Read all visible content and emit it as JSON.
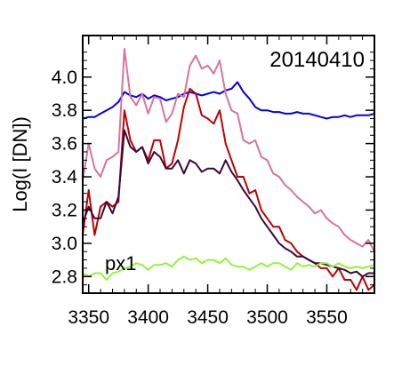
{
  "chart_data": {
    "type": "line",
    "annotations": [
      "20140410",
      "px1"
    ],
    "xlabel": "",
    "ylabel": "Log(I [DN])",
    "xlim": [
      3345,
      3590
    ],
    "ylim": [
      2.7,
      4.25
    ],
    "xticks": [
      3350,
      3400,
      3450,
      3500,
      3550
    ],
    "yticks": [
      2.8,
      3.0,
      3.2,
      3.4,
      3.6,
      3.8,
      4.0
    ],
    "xtick_labels": [
      "3350",
      "3400",
      "3450",
      "3500",
      "3550"
    ],
    "ytick_labels": [
      "2.8",
      "3.0",
      "3.2",
      "3.4",
      "3.6",
      "3.8",
      "4.0"
    ],
    "grid": false,
    "legend": "none",
    "series": [
      {
        "color": "#0000ee",
        "x": [
          3345,
          3350,
          3355,
          3360,
          3365,
          3370,
          3375,
          3380,
          3385,
          3390,
          3395,
          3400,
          3405,
          3410,
          3415,
          3420,
          3425,
          3430,
          3435,
          3440,
          3445,
          3450,
          3455,
          3460,
          3465,
          3470,
          3475,
          3480,
          3485,
          3490,
          3495,
          3500,
          3505,
          3510,
          3515,
          3520,
          3525,
          3530,
          3535,
          3540,
          3545,
          3550,
          3555,
          3560,
          3565,
          3570,
          3575,
          3580,
          3585,
          3590
        ],
        "y": [
          3.75,
          3.76,
          3.76,
          3.78,
          3.8,
          3.82,
          3.85,
          3.91,
          3.89,
          3.88,
          3.9,
          3.87,
          3.89,
          3.88,
          3.86,
          3.87,
          3.88,
          3.9,
          3.91,
          3.9,
          3.89,
          3.9,
          3.91,
          3.9,
          3.92,
          3.93,
          3.97,
          3.91,
          3.87,
          3.82,
          3.8,
          3.8,
          3.79,
          3.79,
          3.78,
          3.78,
          3.79,
          3.78,
          3.78,
          3.77,
          3.76,
          3.75,
          3.76,
          3.76,
          3.77,
          3.76,
          3.77,
          3.77,
          3.77,
          3.78
        ]
      },
      {
        "color": "#d9739c",
        "x": [
          3345,
          3350,
          3355,
          3360,
          3365,
          3370,
          3375,
          3380,
          3385,
          3390,
          3395,
          3400,
          3405,
          3410,
          3415,
          3420,
          3425,
          3430,
          3435,
          3440,
          3445,
          3450,
          3455,
          3460,
          3465,
          3470,
          3475,
          3480,
          3485,
          3490,
          3495,
          3500,
          3505,
          3510,
          3515,
          3520,
          3525,
          3530,
          3535,
          3540,
          3545,
          3550,
          3555,
          3560,
          3565,
          3570,
          3575,
          3580,
          3585,
          3590
        ],
        "y": [
          3.38,
          3.6,
          3.45,
          3.4,
          3.5,
          3.52,
          3.55,
          4.17,
          3.88,
          3.83,
          3.9,
          3.78,
          3.88,
          3.87,
          3.73,
          3.78,
          3.9,
          3.88,
          4.07,
          4.13,
          4.05,
          4.07,
          4.02,
          4.1,
          3.9,
          3.8,
          3.78,
          3.62,
          3.6,
          3.62,
          3.52,
          3.5,
          3.42,
          3.4,
          3.35,
          3.32,
          3.28,
          3.25,
          3.22,
          3.18,
          3.2,
          3.15,
          3.12,
          3.1,
          3.05,
          3.02,
          3.0,
          2.98,
          3.02,
          2.95
        ]
      },
      {
        "color": "#c00000",
        "x": [
          3345,
          3350,
          3355,
          3360,
          3365,
          3370,
          3375,
          3380,
          3385,
          3390,
          3395,
          3400,
          3405,
          3410,
          3415,
          3420,
          3425,
          3430,
          3435,
          3440,
          3445,
          3450,
          3455,
          3460,
          3465,
          3470,
          3475,
          3480,
          3485,
          3490,
          3495,
          3500,
          3505,
          3510,
          3515,
          3520,
          3525,
          3530,
          3535,
          3540,
          3545,
          3550,
          3555,
          3560,
          3565,
          3570,
          3575,
          3580,
          3585,
          3590
        ],
        "y": [
          3.05,
          3.32,
          3.05,
          3.22,
          3.25,
          3.22,
          3.25,
          3.8,
          3.62,
          3.55,
          3.58,
          3.5,
          3.62,
          3.62,
          3.45,
          3.48,
          3.62,
          3.82,
          3.93,
          3.9,
          3.77,
          3.75,
          3.72,
          3.8,
          3.6,
          3.5,
          3.4,
          3.4,
          3.3,
          3.32,
          3.2,
          3.15,
          3.1,
          3.1,
          3.02,
          3.0,
          2.95,
          2.92,
          2.9,
          2.88,
          2.85,
          2.85,
          2.8,
          2.85,
          2.78,
          2.78,
          2.72,
          2.8,
          2.72,
          2.75
        ]
      },
      {
        "color": "#3a0a3a",
        "x": [
          3345,
          3350,
          3355,
          3360,
          3365,
          3370,
          3375,
          3380,
          3385,
          3390,
          3395,
          3400,
          3405,
          3410,
          3415,
          3420,
          3425,
          3430,
          3435,
          3440,
          3445,
          3450,
          3455,
          3460,
          3465,
          3470,
          3475,
          3480,
          3485,
          3490,
          3495,
          3500,
          3505,
          3510,
          3515,
          3520,
          3525,
          3530,
          3535,
          3540,
          3545,
          3550,
          3555,
          3560,
          3565,
          3570,
          3575,
          3580,
          3585,
          3590
        ],
        "y": [
          3.12,
          3.22,
          3.15,
          3.15,
          3.25,
          3.18,
          3.28,
          3.68,
          3.58,
          3.55,
          3.58,
          3.48,
          3.55,
          3.52,
          3.45,
          3.45,
          3.5,
          3.42,
          3.5,
          3.48,
          3.43,
          3.45,
          3.45,
          3.42,
          3.5,
          3.43,
          3.38,
          3.32,
          3.27,
          3.22,
          3.15,
          3.1,
          3.05,
          3.0,
          2.97,
          2.95,
          2.92,
          2.92,
          2.9,
          2.88,
          2.88,
          2.87,
          2.86,
          2.85,
          2.84,
          2.82,
          2.83,
          2.8,
          2.82,
          2.82
        ]
      },
      {
        "color": "#99f03c",
        "x": [
          3345,
          3350,
          3355,
          3360,
          3365,
          3370,
          3375,
          3380,
          3385,
          3390,
          3395,
          3400,
          3405,
          3410,
          3415,
          3420,
          3425,
          3430,
          3435,
          3440,
          3445,
          3450,
          3455,
          3460,
          3465,
          3470,
          3475,
          3480,
          3485,
          3490,
          3495,
          3500,
          3505,
          3510,
          3515,
          3520,
          3525,
          3530,
          3535,
          3540,
          3545,
          3550,
          3555,
          3560,
          3565,
          3570,
          3575,
          3580,
          3585,
          3590
        ],
        "y": [
          2.82,
          2.8,
          2.82,
          2.82,
          2.78,
          2.82,
          2.83,
          2.85,
          2.86,
          2.88,
          2.87,
          2.84,
          2.87,
          2.87,
          2.88,
          2.86,
          2.9,
          2.92,
          2.9,
          2.91,
          2.88,
          2.9,
          2.9,
          2.88,
          2.91,
          2.87,
          2.86,
          2.86,
          2.84,
          2.86,
          2.88,
          2.86,
          2.88,
          2.88,
          2.86,
          2.84,
          2.88,
          2.86,
          2.87,
          2.86,
          2.88,
          2.88,
          2.86,
          2.88,
          2.86,
          2.85,
          2.86,
          2.85,
          2.86,
          2.87
        ]
      }
    ]
  }
}
